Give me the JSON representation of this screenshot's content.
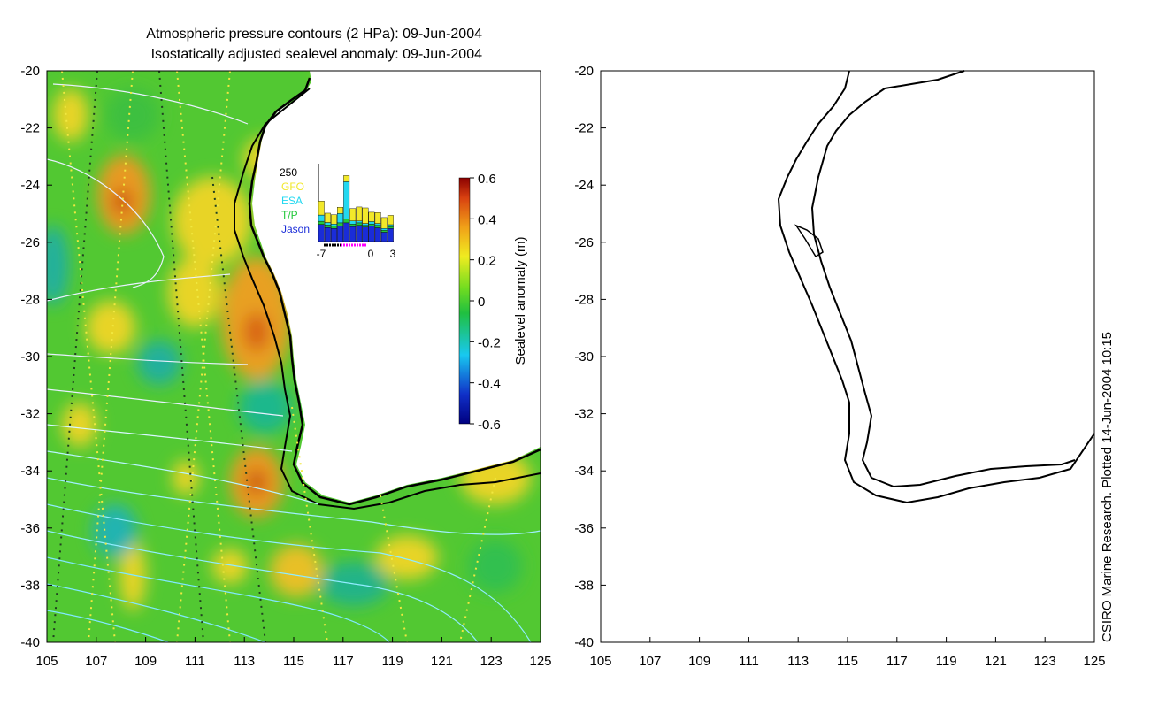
{
  "chart_data": [
    {
      "type": "heatmap",
      "title": [
        "Atmospheric pressure contours (2 HPa): 09-Jun-2004",
        "Isostatically adjusted sealevel anomaly: 09-Jun-2004"
      ],
      "x_ticks": [
        "105",
        "107",
        "109",
        "111",
        "113",
        "115",
        "117",
        "119",
        "121",
        "123",
        "125"
      ],
      "y_ticks": [
        "-20",
        "-22",
        "-24",
        "-26",
        "-28",
        "-30",
        "-32",
        "-34",
        "-36",
        "-38",
        "-40"
      ],
      "xlim": [
        105,
        125
      ],
      "ylim": [
        -40,
        -20
      ],
      "colorbar": {
        "label": "Sealevel anomaly (m)",
        "ticks": [
          "0.6",
          "0.4",
          "0.2",
          "0",
          "-0.2",
          "-0.4",
          "-0.6"
        ],
        "range": [
          -0.6,
          0.6
        ]
      },
      "inset": {
        "y_top_label": "250",
        "x_ticks": [
          "-7",
          "0",
          "3"
        ],
        "legend": [
          {
            "name": "GFO",
            "color": "#f2e82a"
          },
          {
            "name": "ESA",
            "color": "#22d8f0"
          },
          {
            "name": "T/P",
            "color": "#22c83a"
          },
          {
            "name": "Jason",
            "color": "#1a2cd8"
          }
        ],
        "series": [
          {
            "name": "Jason",
            "values": [
              55,
              45,
              42,
              50,
              60,
              48,
              52,
              46,
              50,
              44,
              30,
              42
            ]
          },
          {
            "name": "T/P",
            "values": [
              10,
              8,
              8,
              10,
              12,
              8,
              8,
              6,
              6,
              8,
              6,
              6
            ]
          },
          {
            "name": "ESA",
            "values": [
              20,
              8,
              6,
              30,
              120,
              10,
              6,
              6,
              8,
              6,
              6,
              6
            ]
          },
          {
            "name": "GFO",
            "values": [
              45,
              30,
              30,
              20,
              20,
              40,
              45,
              50,
              30,
              35,
              35,
              30
            ]
          }
        ]
      }
    },
    {
      "type": "line",
      "title": "",
      "x_ticks": [
        "105",
        "107",
        "109",
        "111",
        "113",
        "115",
        "117",
        "119",
        "121",
        "123",
        "125"
      ],
      "y_ticks": [
        "-20",
        "-22",
        "-24",
        "-26",
        "-28",
        "-30",
        "-32",
        "-34",
        "-36",
        "-38",
        "-40"
      ],
      "xlim": [
        105,
        125
      ],
      "ylim": [
        -40,
        -20
      ]
    }
  ],
  "credit": "CSIRO Marine Research. Plotted 14-Jun-2004 10:15"
}
